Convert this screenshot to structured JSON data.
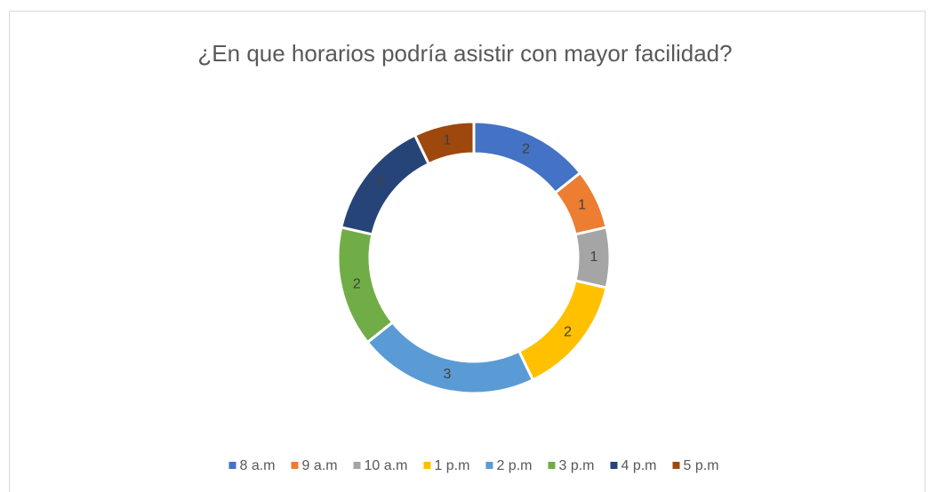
{
  "chart_data": {
    "type": "donut",
    "title": "¿En que horarios podría asistir con mayor facilidad?",
    "categories": [
      "8 a.m",
      "9 a.m",
      "10 a.m",
      "1 p.m",
      "2 p.m",
      "3 p.m",
      "4 p.m",
      "5 p.m"
    ],
    "values": [
      2,
      1,
      1,
      2,
      3,
      2,
      2,
      1
    ],
    "colors": [
      "#4472c4",
      "#ed7d31",
      "#a5a5a5",
      "#ffc000",
      "#5b9bd5",
      "#70ad47",
      "#264478",
      "#9e480e"
    ],
    "legend": "bottom"
  }
}
